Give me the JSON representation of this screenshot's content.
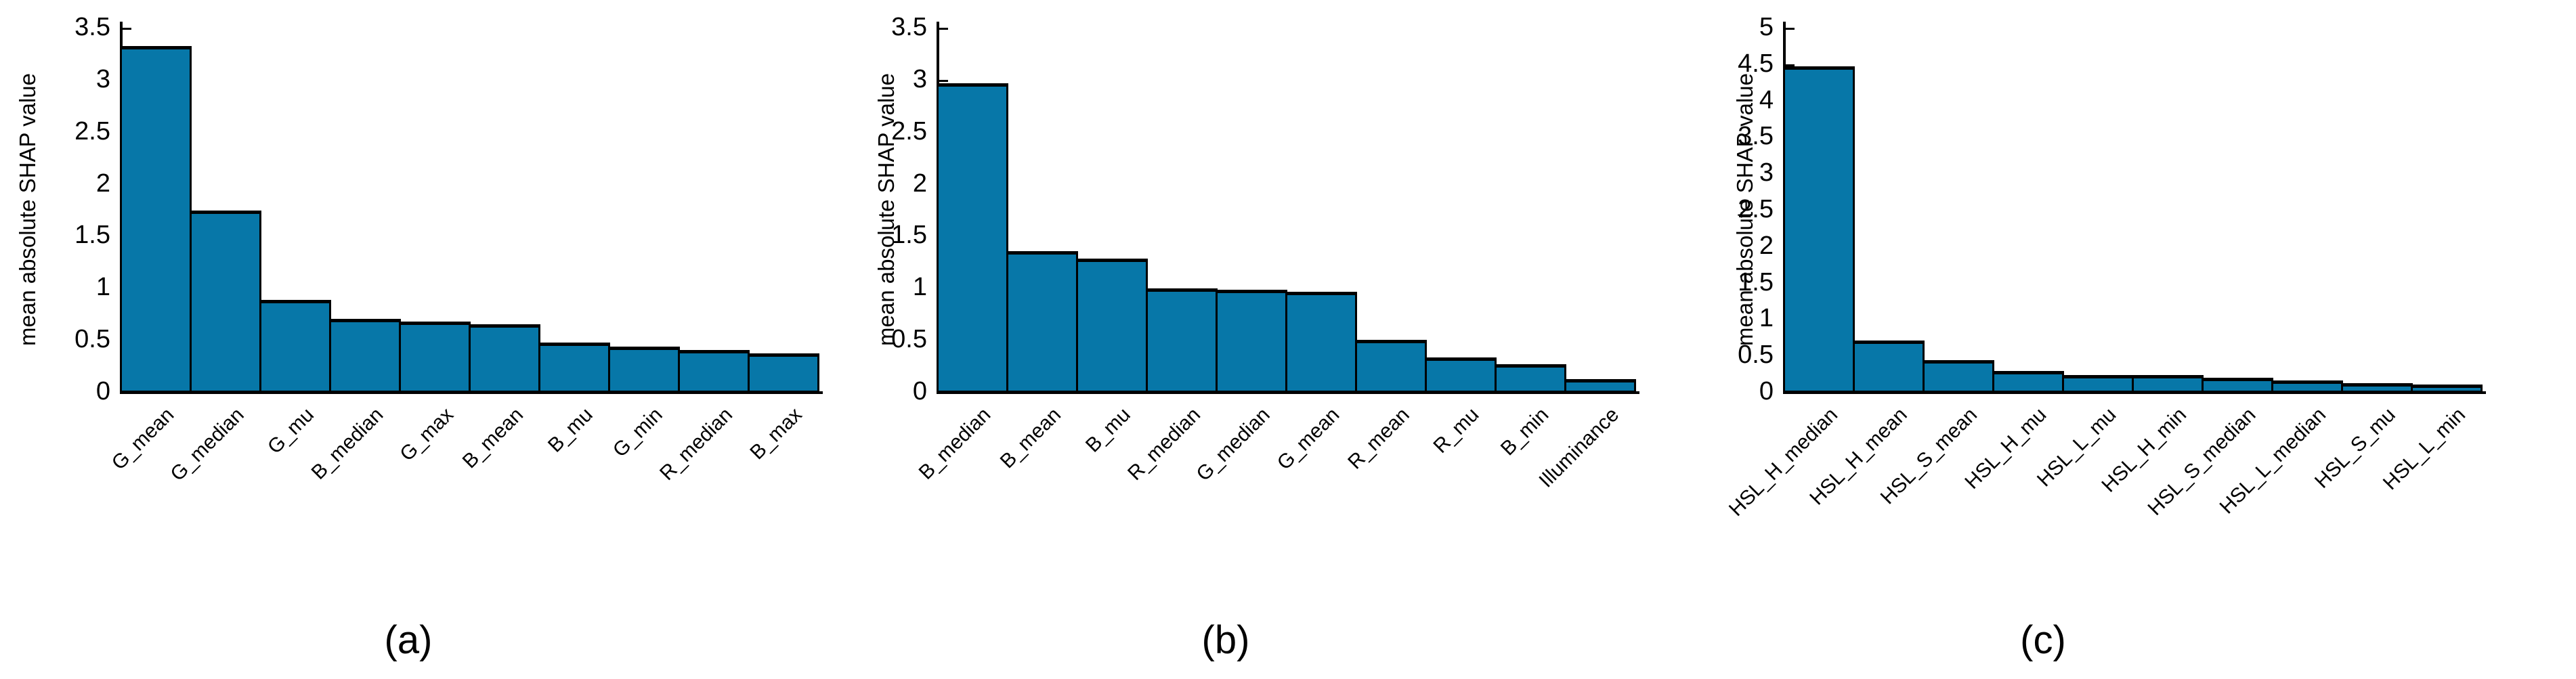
{
  "colors": {
    "bar_fill": "#0777a8",
    "bar_edge": "#000000",
    "axis": "#000000",
    "text": "#000000"
  },
  "chart_data": [
    {
      "type": "bar",
      "caption": "(a)",
      "ylabel": "mean absolute SHAP value",
      "ylim": [
        0,
        3.5
      ],
      "ytick_step": 0.5,
      "yticklabels": [
        "3.5",
        "3",
        "2.5",
        "2",
        "1.5",
        "1",
        "0.5",
        "0"
      ],
      "grid": false,
      "categories": [
        "G_mean",
        "G_median",
        "G_mu",
        "B_median",
        "G_max",
        "B_mean",
        "B_mu",
        "G_min",
        "R_median",
        "B_max"
      ],
      "values": [
        3.33,
        1.75,
        0.89,
        0.71,
        0.68,
        0.66,
        0.48,
        0.44,
        0.41,
        0.38
      ]
    },
    {
      "type": "bar",
      "caption": "(b)",
      "ylabel": "mean absolute SHAP value",
      "ylim": [
        0,
        3.5
      ],
      "ytick_step": 0.5,
      "yticklabels": [
        "3.5",
        "3",
        "2.5",
        "2",
        "1.5",
        "1",
        "0.5",
        "0"
      ],
      "grid": false,
      "categories": [
        "B_median",
        "B_mean",
        "B_mu",
        "R_median",
        "G_median",
        "G_mean",
        "R_mean",
        "R_mu",
        "B_min",
        "Illuminance"
      ],
      "values": [
        2.97,
        1.36,
        1.29,
        1.0,
        0.99,
        0.97,
        0.51,
        0.34,
        0.27,
        0.13
      ]
    },
    {
      "type": "bar",
      "caption": "(c)",
      "ylabel": "mean absolute SHAP value",
      "ylim": [
        0,
        5
      ],
      "ytick_step": 0.5,
      "yticklabels": [
        "5",
        "4.5",
        "4",
        "3.5",
        "3",
        "2.5",
        "2",
        "1.5",
        "1",
        "0.5",
        "0"
      ],
      "grid": false,
      "categories": [
        "HSL_H_median",
        "HSL_H_mean",
        "HSL_S_mean",
        "HSL_H_mu",
        "HSL_L_mu",
        "HSL_H_min",
        "HSL_S_median",
        "HSL_L_median",
        "HSL_S_mu",
        "HSL_L_min"
      ],
      "values": [
        4.48,
        0.72,
        0.45,
        0.3,
        0.24,
        0.24,
        0.2,
        0.17,
        0.13,
        0.11
      ]
    }
  ]
}
